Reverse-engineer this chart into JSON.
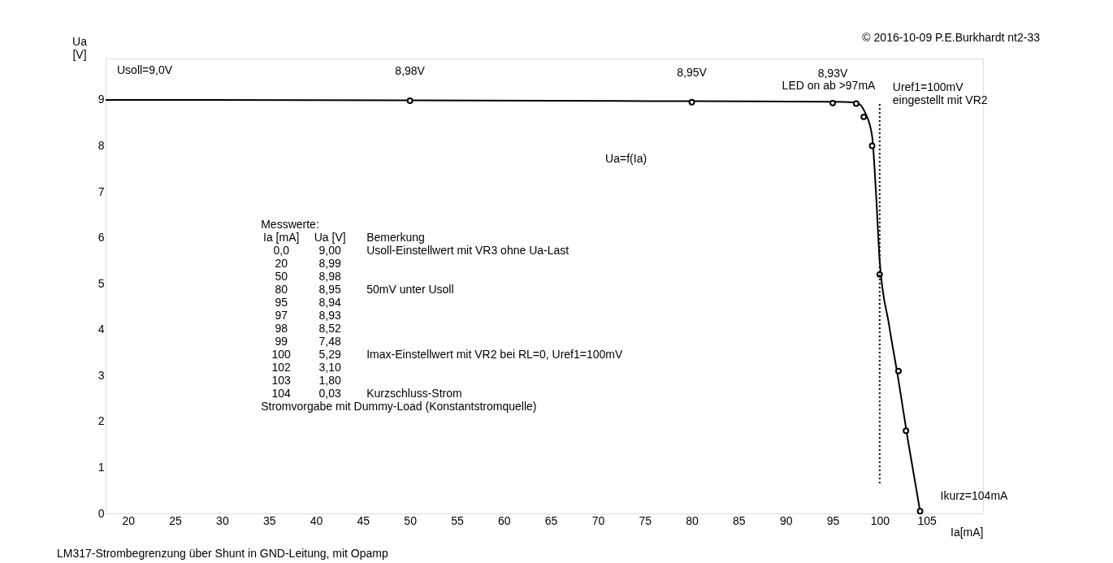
{
  "chart_data": {
    "type": "line",
    "xlabel": "Ia[mA]",
    "ylabel": "Ua\n[V]",
    "xlim": [
      17.6,
      111
    ],
    "xticks": [
      20,
      25,
      30,
      35,
      40,
      45,
      50,
      55,
      60,
      65,
      70,
      75,
      80,
      85,
      90,
      95,
      100,
      105
    ],
    "ylim": [
      0,
      9.9
    ],
    "yticks": [
      0,
      1,
      2,
      3,
      4,
      5,
      6,
      7,
      8,
      9
    ],
    "grid": false,
    "series": [
      {
        "color": "#000000",
        "line_style": "solid",
        "x": [
          17.6,
          50,
          80,
          95,
          97.5,
          98.5,
          99.2,
          99.6,
          100,
          101,
          102,
          103,
          104.3
        ],
        "values": [
          9,
          8.99,
          8.97,
          8.96,
          8.94,
          8.7,
          8.2,
          7,
          5.5,
          4.1,
          2.9,
          1.6,
          0.05
        ]
      },
      {
        "type": "scatter",
        "color": "#000000",
        "marker": "circle",
        "x": [
          50,
          80,
          95,
          97.5,
          98.3,
          99.2,
          100,
          102,
          102.8,
          104.3
        ],
        "values": [
          8.98,
          8.95,
          8.93,
          8.92,
          8.63,
          8.0,
          5.2,
          3.1,
          1.8,
          0.05
        ]
      }
    ],
    "ref_lines": [
      {
        "axis": "x",
        "value": 100,
        "label": "Uref1=100mV\neingestellt mit VR2",
        "color": "#000000",
        "line_style": "dotted"
      }
    ],
    "annotations": [
      "© 2016-10-09 P.E.Burkhardt nt2-33",
      "Usoll=9,0V",
      "LED on ab >97mA",
      "Ua=f(Ia)",
      "Messwerte:",
      "Ia [mA]\tUa [V]\tBemerkung",
      "0,0\t9,00\tUsoll-Einstellwert mit VR3 ohne Ua-Last",
      "20\t8,99",
      "50\t8,98",
      "80\t8,95\t50mV unter Usoll",
      "95\t8,94",
      "97\t8,93",
      "98\t8,52",
      "99\t7,48",
      "100\t5,29\tImax-Einstellwert mit VR2 bei RL=0, Uref1=100mV",
      "102\t3,10",
      "103\t1,80",
      "104\t0,03\tKurzschluss-Strom",
      "Stromvorgabe mit Dummy-Load (Konstantstromquelle)",
      "LM317-Strombegrenzung über Shunt in GND-Leitung, mit Opamp",
      {
        "text": "8,98V",
        "x": 50,
        "y": 8.98
      },
      {
        "text": "8,95V",
        "x": 80,
        "y": 8.95
      },
      {
        "text": "8,93V",
        "x": 95,
        "y": 8.93
      },
      {
        "text": "Ikurz=104mA",
        "x": 104.3,
        "y": 0.05
      }
    ]
  }
}
